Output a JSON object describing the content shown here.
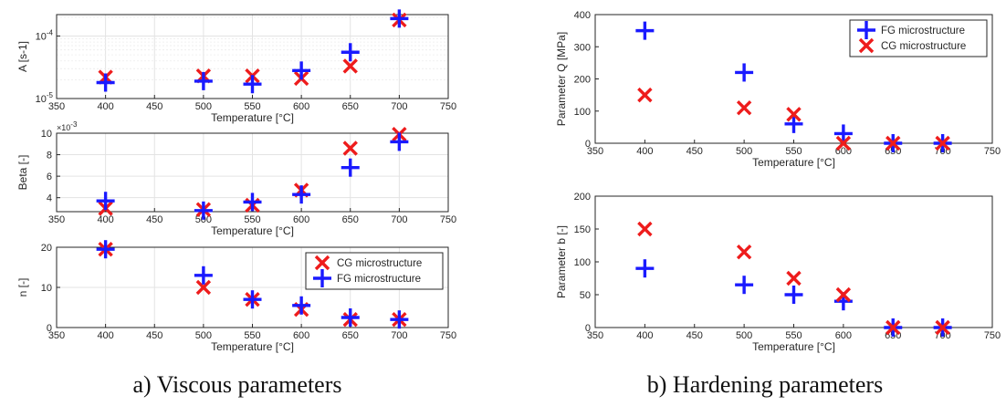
{
  "captions": {
    "left": "a) Viscous parameters",
    "right": "b) Hardening parameters"
  },
  "colors": {
    "fg": "#1a1aff",
    "cg": "#ee1c1c"
  },
  "chart_data": [
    {
      "id": "A",
      "type": "scatter",
      "xlabel": "Temperature [°C]",
      "ylabel": "A [s-1]",
      "xlim": [
        350,
        750
      ],
      "xticks": [
        350,
        400,
        450,
        500,
        550,
        600,
        650,
        700,
        750
      ],
      "yscale": "log",
      "ylim": [
        1e-05,
        0.00022
      ],
      "yticks": [
        {
          "value": 1e-05,
          "base": "10",
          "exp": "-5"
        },
        {
          "value": 0.0001,
          "base": "10",
          "exp": "-4"
        }
      ],
      "grid": true,
      "series": [
        {
          "key": "cg",
          "marker": "x",
          "x": [
            400,
            500,
            550,
            600,
            650,
            700
          ],
          "y": [
            2.2e-05,
            2.3e-05,
            2.3e-05,
            2.1e-05,
            3.3e-05,
            0.00018
          ]
        },
        {
          "key": "fg",
          "marker": "+",
          "x": [
            400,
            500,
            550,
            600,
            650,
            700
          ],
          "y": [
            1.8e-05,
            1.9e-05,
            1.7e-05,
            2.8e-05,
            5.5e-05,
            0.00019
          ]
        }
      ]
    },
    {
      "id": "Beta",
      "type": "scatter",
      "xlabel": "Temperature [°C]",
      "ylabel": "Beta [-]",
      "xlim": [
        350,
        750
      ],
      "xticks": [
        350,
        400,
        450,
        500,
        550,
        600,
        650,
        700,
        750
      ],
      "ylim": [
        0.0027,
        0.01
      ],
      "yticks": [
        {
          "value": 0.004,
          "label": "4"
        },
        {
          "value": 0.006,
          "label": "6"
        },
        {
          "value": 0.008,
          "label": "8"
        },
        {
          "value": 0.01,
          "label": "10"
        }
      ],
      "exponent_label": {
        "base": "×10",
        "exp": "-3"
      },
      "grid": true,
      "series": [
        {
          "key": "cg",
          "marker": "x",
          "x": [
            400,
            500,
            550,
            600,
            650,
            700
          ],
          "y": [
            0.003,
            0.0029,
            0.0033,
            0.0047,
            0.0086,
            0.0099
          ]
        },
        {
          "key": "fg",
          "marker": "+",
          "x": [
            400,
            500,
            550,
            600,
            650,
            700
          ],
          "y": [
            0.0037,
            0.0028,
            0.0036,
            0.0043,
            0.0068,
            0.0092
          ]
        }
      ]
    },
    {
      "id": "n",
      "type": "scatter",
      "xlabel": "Temperature [°C]",
      "ylabel": "n [-]",
      "xlim": [
        350,
        750
      ],
      "xticks": [
        350,
        400,
        450,
        500,
        550,
        600,
        650,
        700,
        750
      ],
      "ylim": [
        0,
        20
      ],
      "yticks": [
        {
          "value": 0,
          "label": "0"
        },
        {
          "value": 10,
          "label": "10"
        },
        {
          "value": 20,
          "label": "20"
        }
      ],
      "grid": true,
      "legend": {
        "position": "top-right",
        "entries": [
          {
            "key": "cg",
            "marker": "x",
            "label": "CG microstructure"
          },
          {
            "key": "fg",
            "marker": "+",
            "label": "FG microstructure"
          }
        ]
      },
      "series": [
        {
          "key": "cg",
          "marker": "x",
          "x": [
            400,
            500,
            550,
            600,
            650,
            700
          ],
          "y": [
            19.5,
            10,
            7,
            4.5,
            2,
            2
          ]
        },
        {
          "key": "fg",
          "marker": "+",
          "x": [
            400,
            500,
            550,
            600,
            650,
            700
          ],
          "y": [
            19.5,
            13,
            7,
            5.5,
            2.5,
            2
          ]
        }
      ]
    },
    {
      "id": "Q",
      "type": "scatter",
      "xlabel": "Temperature [°C]",
      "ylabel": "Parameter Q [MPa]",
      "xlim": [
        350,
        750
      ],
      "xticks": [
        350,
        400,
        450,
        500,
        550,
        600,
        650,
        700,
        750
      ],
      "ylim": [
        0,
        400
      ],
      "yticks": [
        {
          "value": 0,
          "label": "0"
        },
        {
          "value": 100,
          "label": "100"
        },
        {
          "value": 200,
          "label": "200"
        },
        {
          "value": 300,
          "label": "300"
        },
        {
          "value": 400,
          "label": "400"
        }
      ],
      "grid": false,
      "legend": {
        "position": "top-right",
        "entries": [
          {
            "key": "fg",
            "marker": "+",
            "label": "FG microstructure"
          },
          {
            "key": "cg",
            "marker": "x",
            "label": "CG microstructure"
          }
        ]
      },
      "series": [
        {
          "key": "fg",
          "marker": "+",
          "x": [
            400,
            500,
            550,
            600,
            650,
            700
          ],
          "y": [
            350,
            220,
            60,
            30,
            0,
            0
          ]
        },
        {
          "key": "cg",
          "marker": "x",
          "x": [
            400,
            500,
            550,
            600,
            650,
            700
          ],
          "y": [
            150,
            110,
            90,
            0,
            0,
            0
          ]
        }
      ]
    },
    {
      "id": "b",
      "type": "scatter",
      "xlabel": "Temperature [°C]",
      "ylabel": "Parameter b [-]",
      "xlim": [
        350,
        750
      ],
      "xticks": [
        350,
        400,
        450,
        500,
        550,
        600,
        650,
        700,
        750
      ],
      "ylim": [
        0,
        200
      ],
      "yticks": [
        {
          "value": 0,
          "label": "0"
        },
        {
          "value": 50,
          "label": "50"
        },
        {
          "value": 100,
          "label": "100"
        },
        {
          "value": 150,
          "label": "150"
        },
        {
          "value": 200,
          "label": "200"
        }
      ],
      "grid": false,
      "series": [
        {
          "key": "fg",
          "marker": "+",
          "x": [
            400,
            500,
            550,
            600,
            650,
            700
          ],
          "y": [
            90,
            65,
            50,
            40,
            0,
            0
          ]
        },
        {
          "key": "cg",
          "marker": "x",
          "x": [
            400,
            500,
            550,
            600,
            650,
            700
          ],
          "y": [
            150,
            115,
            75,
            50,
            0,
            0
          ]
        }
      ]
    }
  ]
}
